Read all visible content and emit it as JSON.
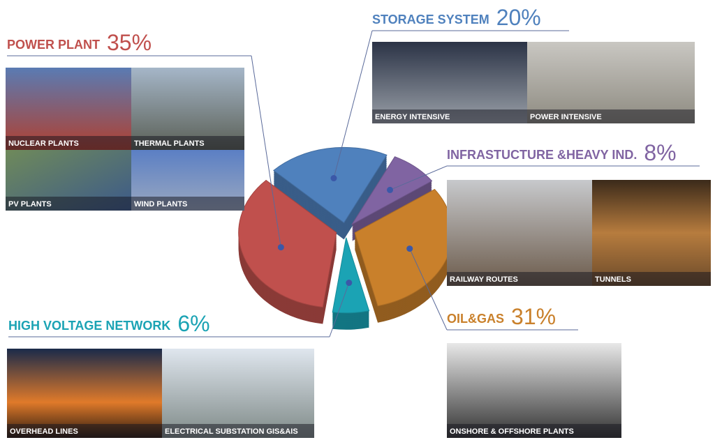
{
  "chart_data": {
    "type": "pie",
    "categories": [
      "STORAGE SYSTEM",
      "INFRASTUCTURE &HEAVY IND.",
      "OIL&GAS",
      "HIGH VOLTAGE NETWORK",
      "POWER PLANT"
    ],
    "values": [
      20,
      8,
      31,
      6,
      35
    ],
    "value_labels": [
      "20%",
      "8%",
      "31%",
      "6%",
      "35%"
    ],
    "colors": [
      "#4f81bd",
      "#8064a2",
      "#c9802b",
      "#1ba3b4",
      "#c0504d"
    ],
    "captions": [
      [
        "ENERGY INTENSIVE",
        "POWER INTENSIVE"
      ],
      [
        "RAILWAY ROUTES",
        "TUNNELS"
      ],
      [
        "ONSHORE & OFFSHORE PLANTS"
      ],
      [
        "OVERHEAD LINES",
        "ELECTRICAL SUBSTATION GIS&AIS"
      ],
      [
        "NUCLEAR PLANTS",
        "THERMAL PLANTS",
        "PV PLANTS",
        "WIND PLANTS"
      ]
    ]
  }
}
